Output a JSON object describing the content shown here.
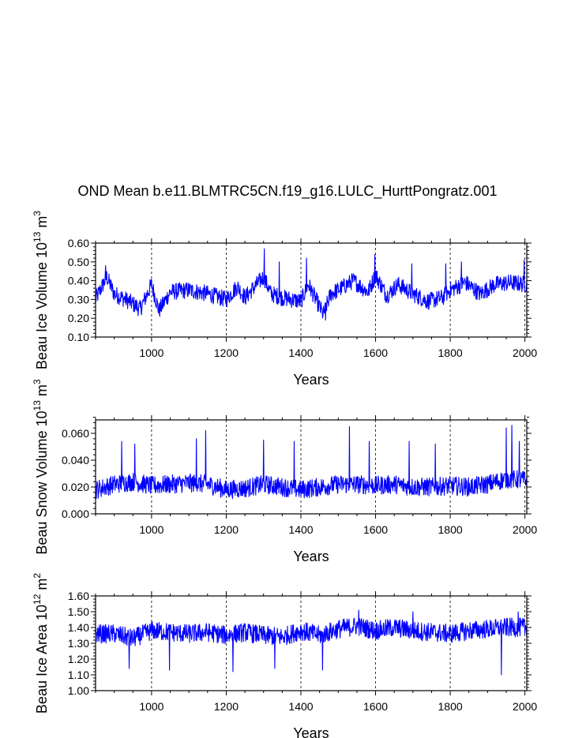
{
  "chart_data": [
    {
      "type": "line",
      "title": "OND Mean b.e11.BLMTRC5CN.f19_g16.LULC_HurttPongratz.001",
      "xlabel": "Years",
      "ylabel": "Beau Ice Volume 10^13 m^3",
      "ylabel_parts": {
        "prefix": "Beau Ice Volume 10",
        "exp1": "13",
        "mid": " m",
        "exp2": "3"
      },
      "xlim": [
        850,
        2005
      ],
      "ylim": [
        0.1,
        0.6
      ],
      "xticks": [
        1000,
        1200,
        1400,
        1600,
        1800,
        2000
      ],
      "xtick_labels": [
        "1000",
        "1200",
        "1400",
        "1600",
        "1800",
        "2000"
      ],
      "yticks": [
        0.1,
        0.2,
        0.3,
        0.4,
        0.5,
        0.6
      ],
      "ytick_labels": [
        "0.10",
        "0.20",
        "0.30",
        "0.40",
        "0.50",
        "0.60"
      ],
      "grid": "x-dashed",
      "series": [
        {
          "name": "Beau Ice Volume",
          "color": "#0000ff",
          "x_start": 850,
          "x_end": 2005,
          "keypoints": [
            [
              850,
              0.3
            ],
            [
              880,
              0.42
            ],
            [
              900,
              0.33
            ],
            [
              940,
              0.29
            ],
            [
              970,
              0.25
            ],
            [
              1000,
              0.38
            ],
            [
              1020,
              0.24
            ],
            [
              1050,
              0.34
            ],
            [
              1100,
              0.35
            ],
            [
              1150,
              0.33
            ],
            [
              1200,
              0.3
            ],
            [
              1230,
              0.37
            ],
            [
              1250,
              0.31
            ],
            [
              1300,
              0.42
            ],
            [
              1320,
              0.33
            ],
            [
              1350,
              0.31
            ],
            [
              1400,
              0.29
            ],
            [
              1420,
              0.38
            ],
            [
              1440,
              0.3
            ],
            [
              1460,
              0.22
            ],
            [
              1480,
              0.33
            ],
            [
              1500,
              0.35
            ],
            [
              1540,
              0.4
            ],
            [
              1580,
              0.34
            ],
            [
              1600,
              0.43
            ],
            [
              1630,
              0.32
            ],
            [
              1660,
              0.38
            ],
            [
              1700,
              0.33
            ],
            [
              1740,
              0.29
            ],
            [
              1780,
              0.31
            ],
            [
              1800,
              0.35
            ],
            [
              1840,
              0.39
            ],
            [
              1880,
              0.33
            ],
            [
              1920,
              0.38
            ],
            [
              1960,
              0.39
            ],
            [
              2005,
              0.38
            ]
          ],
          "noise": 0.045,
          "peaks": [
            [
              877,
              0.48
            ],
            [
              1302,
              0.57
            ],
            [
              1342,
              0.5
            ],
            [
              1415,
              0.52
            ],
            [
              1466,
              0.19
            ],
            [
              1598,
              0.54
            ],
            [
              1697,
              0.49
            ],
            [
              1788,
              0.49
            ],
            [
              1830,
              0.5
            ],
            [
              1998,
              0.51
            ]
          ]
        }
      ]
    },
    {
      "type": "line",
      "xlabel": "Years",
      "ylabel": "Beau Snow Volume 10^13 m^3",
      "ylabel_parts": {
        "prefix": "Beau Snow Volume 10",
        "exp1": "13",
        "mid": " m",
        "exp2": "3"
      },
      "xlim": [
        850,
        2005
      ],
      "ylim": [
        0.0,
        0.07
      ],
      "xticks": [
        1000,
        1200,
        1400,
        1600,
        1800,
        2000
      ],
      "xtick_labels": [
        "1000",
        "1200",
        "1400",
        "1600",
        "1800",
        "2000"
      ],
      "yticks": [
        0.0,
        0.02,
        0.04,
        0.06
      ],
      "ytick_labels": [
        "0.000",
        "0.020",
        "0.040",
        "0.060"
      ],
      "grid": "x-dashed",
      "series": [
        {
          "name": "Beau Snow Volume",
          "color": "#0000ff",
          "x_start": 850,
          "x_end": 2005,
          "keypoints": [
            [
              850,
              0.018
            ],
            [
              900,
              0.022
            ],
            [
              950,
              0.024
            ],
            [
              1000,
              0.021
            ],
            [
              1050,
              0.022
            ],
            [
              1100,
              0.023
            ],
            [
              1150,
              0.022
            ],
            [
              1200,
              0.018
            ],
            [
              1250,
              0.019
            ],
            [
              1300,
              0.022
            ],
            [
              1350,
              0.02
            ],
            [
              1400,
              0.018
            ],
            [
              1450,
              0.02
            ],
            [
              1500,
              0.022
            ],
            [
              1550,
              0.022
            ],
            [
              1600,
              0.021
            ],
            [
              1650,
              0.022
            ],
            [
              1700,
              0.02
            ],
            [
              1750,
              0.02
            ],
            [
              1800,
              0.021
            ],
            [
              1850,
              0.02
            ],
            [
              1900,
              0.022
            ],
            [
              1950,
              0.026
            ],
            [
              2005,
              0.025
            ]
          ],
          "noise": 0.007,
          "peaks": [
            [
              920,
              0.054
            ],
            [
              955,
              0.052
            ],
            [
              1120,
              0.056
            ],
            [
              1145,
              0.062
            ],
            [
              1300,
              0.055
            ],
            [
              1382,
              0.054
            ],
            [
              1530,
              0.065
            ],
            [
              1583,
              0.054
            ],
            [
              1690,
              0.054
            ],
            [
              1760,
              0.052
            ],
            [
              1950,
              0.064
            ],
            [
              1965,
              0.066
            ],
            [
              1985,
              0.054
            ]
          ]
        }
      ]
    },
    {
      "type": "line",
      "xlabel": "Years",
      "ylabel": "Beau Ice Area 10^12 m^2",
      "ylabel_parts": {
        "prefix": "Beau Ice Area 10",
        "exp1": "12",
        "mid": " m",
        "exp2": "2"
      },
      "xlim": [
        850,
        2005
      ],
      "ylim": [
        1.0,
        1.6
      ],
      "xticks": [
        1000,
        1200,
        1400,
        1600,
        1800,
        2000
      ],
      "xtick_labels": [
        "1000",
        "1200",
        "1400",
        "1600",
        "1800",
        "2000"
      ],
      "yticks": [
        1.0,
        1.1,
        1.2,
        1.3,
        1.4,
        1.5,
        1.6
      ],
      "ytick_labels": [
        "1.00",
        "1.10",
        "1.20",
        "1.30",
        "1.40",
        "1.50",
        "1.60"
      ],
      "grid": "x-dashed",
      "series": [
        {
          "name": "Beau Ice Area",
          "color": "#0000ff",
          "x_start": 850,
          "x_end": 2005,
          "keypoints": [
            [
              850,
              1.36
            ],
            [
              900,
              1.36
            ],
            [
              950,
              1.33
            ],
            [
              1000,
              1.38
            ],
            [
              1050,
              1.37
            ],
            [
              1100,
              1.36
            ],
            [
              1150,
              1.37
            ],
            [
              1200,
              1.35
            ],
            [
              1250,
              1.37
            ],
            [
              1300,
              1.35
            ],
            [
              1350,
              1.34
            ],
            [
              1400,
              1.38
            ],
            [
              1450,
              1.35
            ],
            [
              1500,
              1.39
            ],
            [
              1550,
              1.41
            ],
            [
              1600,
              1.38
            ],
            [
              1650,
              1.4
            ],
            [
              1700,
              1.38
            ],
            [
              1750,
              1.37
            ],
            [
              1800,
              1.36
            ],
            [
              1850,
              1.38
            ],
            [
              1900,
              1.39
            ],
            [
              1950,
              1.4
            ],
            [
              2005,
              1.4
            ]
          ],
          "noise": 0.06,
          "peaks": [
            [
              940,
              1.14
            ],
            [
              1048,
              1.13
            ],
            [
              1218,
              1.12
            ],
            [
              1330,
              1.14
            ],
            [
              1458,
              1.13
            ],
            [
              1555,
              1.51
            ],
            [
              1700,
              1.5
            ],
            [
              1937,
              1.1
            ],
            [
              1982,
              1.5
            ]
          ]
        }
      ]
    }
  ]
}
